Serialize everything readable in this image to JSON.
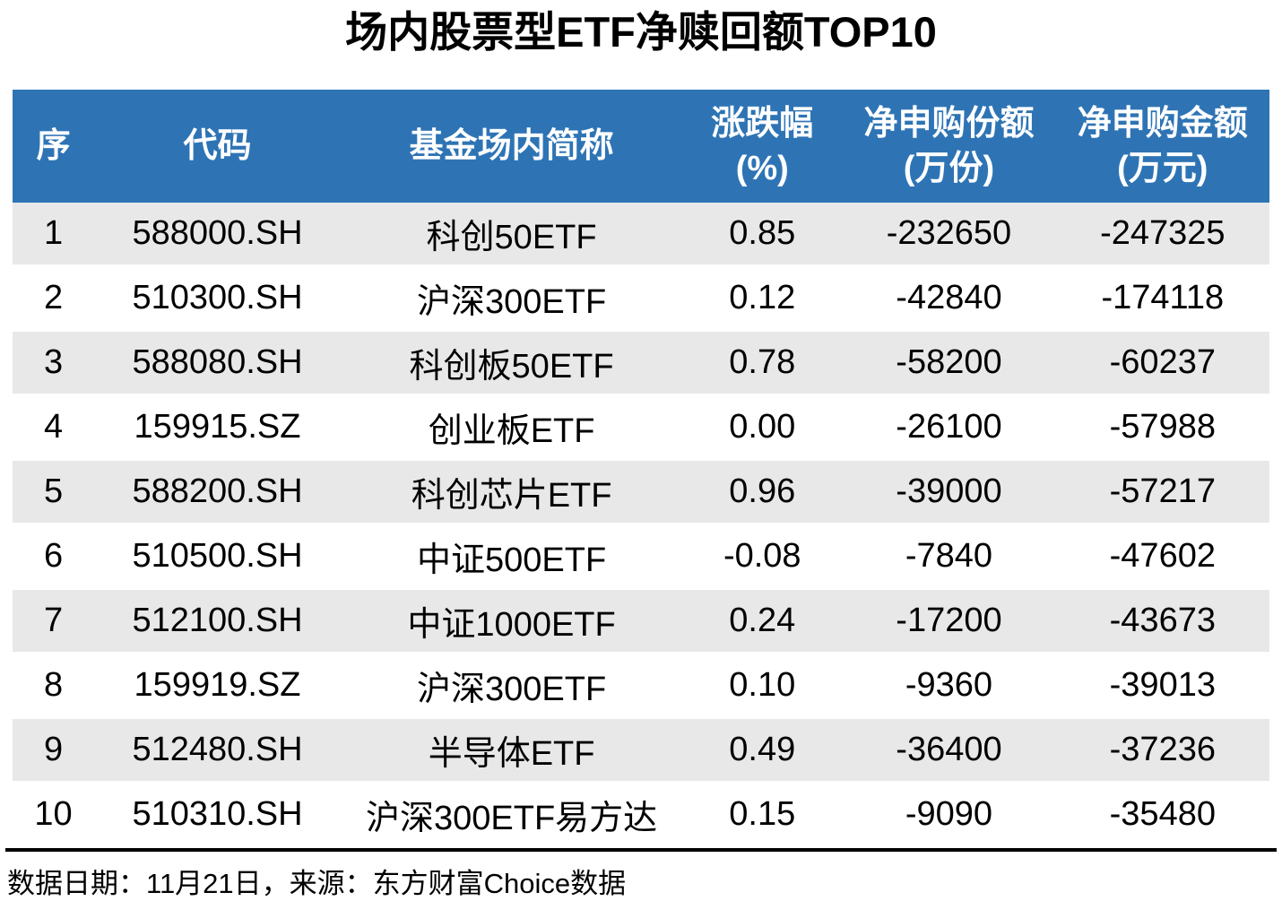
{
  "colors": {
    "header_bg": "#2E74B5",
    "header_text": "#FFFFFF",
    "stripe_bg": "#E8E8E8",
    "body_text": "#000000",
    "divider": "#000000"
  },
  "chart_data": {
    "type": "table",
    "title": "场内股票型ETF净赎回额TOP10",
    "columns": [
      [
        "序"
      ],
      [
        "代码"
      ],
      [
        "基金场内简称"
      ],
      [
        "涨跌幅",
        "(%)"
      ],
      [
        "净申购份额",
        "(万份)"
      ],
      [
        "净申购金额",
        "(万元)"
      ]
    ],
    "rows": [
      [
        "1",
        "588000.SH",
        "科创50ETF",
        "0.85",
        "-232650",
        "-247325"
      ],
      [
        "2",
        "510300.SH",
        "沪深300ETF",
        "0.12",
        "-42840",
        "-174118"
      ],
      [
        "3",
        "588080.SH",
        "科创板50ETF",
        "0.78",
        "-58200",
        "-60237"
      ],
      [
        "4",
        "159915.SZ",
        "创业板ETF",
        "0.00",
        "-26100",
        "-57988"
      ],
      [
        "5",
        "588200.SH",
        "科创芯片ETF",
        "0.96",
        "-39000",
        "-57217"
      ],
      [
        "6",
        "510500.SH",
        "中证500ETF",
        "-0.08",
        "-7840",
        "-47602"
      ],
      [
        "7",
        "512100.SH",
        "中证1000ETF",
        "0.24",
        "-17200",
        "-43673"
      ],
      [
        "8",
        "159919.SZ",
        "沪深300ETF",
        "0.10",
        "-9360",
        "-39013"
      ],
      [
        "9",
        "512480.SH",
        "半导体ETF",
        "0.49",
        "-36400",
        "-37236"
      ],
      [
        "10",
        "510310.SH",
        "沪深300ETF易方达",
        "0.15",
        "-9090",
        "-35480"
      ]
    ],
    "footnote": "数据日期：11月21日，来源：东方财富Choice数据",
    "layout_hints": {
      "striped_rows": "odd",
      "header_lines": 2,
      "grid": "off"
    }
  }
}
